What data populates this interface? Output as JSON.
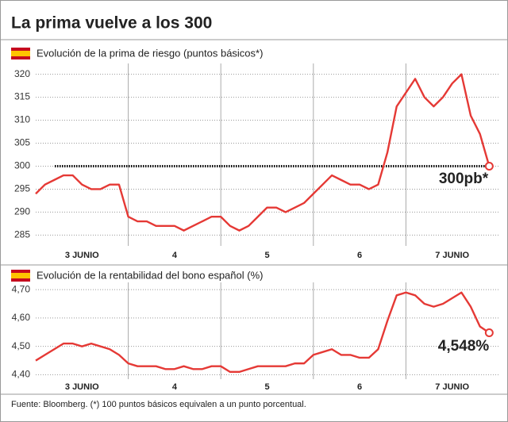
{
  "title": "La prima vuelve a los 300",
  "source": "Fuente: Bloomberg. (*) 100 puntos básicos equivalen a un punto porcentual.",
  "chart_data": [
    {
      "type": "line",
      "title": "Evolución de la prima de riesgo (puntos básicos*)",
      "x": [
        0,
        0.1,
        0.2,
        0.3,
        0.4,
        0.5,
        0.6,
        0.7,
        0.8,
        0.9,
        1,
        1.1,
        1.2,
        1.3,
        1.4,
        1.5,
        1.6,
        1.7,
        1.8,
        1.9,
        2,
        2.1,
        2.2,
        2.3,
        2.4,
        2.5,
        2.6,
        2.7,
        2.8,
        2.9,
        3,
        3.1,
        3.2,
        3.3,
        3.4,
        3.5,
        3.6,
        3.7,
        3.8,
        3.9,
        4,
        4.1,
        4.2,
        4.3,
        4.4,
        4.5,
        4.6,
        4.7,
        4.8,
        4.9
      ],
      "series": [
        {
          "name": "Prima de riesgo",
          "color": "#e53935",
          "values": [
            294,
            296,
            297,
            298,
            298,
            296,
            295,
            295,
            296,
            296,
            289,
            288,
            288,
            287,
            287,
            287,
            286,
            287,
            288,
            289,
            289,
            287,
            286,
            287,
            289,
            291,
            291,
            290,
            291,
            292,
            294,
            296,
            298,
            297,
            296,
            296,
            295,
            296,
            303,
            313,
            316,
            319,
            315,
            313,
            315,
            318,
            320,
            311,
            307,
            300
          ]
        }
      ],
      "xlim": [
        0,
        5
      ],
      "xticks": [
        {
          "value": 0.5,
          "label": "3 JUNIO"
        },
        {
          "value": 1.5,
          "label": "4"
        },
        {
          "value": 2.5,
          "label": "5"
        },
        {
          "value": 3.5,
          "label": "6"
        },
        {
          "value": 4.5,
          "label": "7 JUNIO"
        }
      ],
      "ylim": [
        283,
        322
      ],
      "yticks": [
        285,
        290,
        295,
        300,
        305,
        310,
        315,
        320
      ],
      "grid": true,
      "hline": 300,
      "annotation": "300pb*"
    },
    {
      "type": "line",
      "title": "Evolución de la rentabilidad del bono español (%)",
      "x": [
        0,
        0.1,
        0.2,
        0.3,
        0.4,
        0.5,
        0.6,
        0.7,
        0.8,
        0.9,
        1,
        1.1,
        1.2,
        1.3,
        1.4,
        1.5,
        1.6,
        1.7,
        1.8,
        1.9,
        2,
        2.1,
        2.2,
        2.3,
        2.4,
        2.5,
        2.6,
        2.7,
        2.8,
        2.9,
        3,
        3.1,
        3.2,
        3.3,
        3.4,
        3.5,
        3.6,
        3.7,
        3.8,
        3.9,
        4,
        4.1,
        4.2,
        4.3,
        4.4,
        4.5,
        4.6,
        4.7,
        4.8,
        4.9
      ],
      "series": [
        {
          "name": "Rentabilidad bono",
          "color": "#e53935",
          "values": [
            4.45,
            4.47,
            4.49,
            4.51,
            4.51,
            4.5,
            4.51,
            4.5,
            4.49,
            4.47,
            4.44,
            4.43,
            4.43,
            4.43,
            4.42,
            4.42,
            4.43,
            4.42,
            4.42,
            4.43,
            4.43,
            4.41,
            4.41,
            4.42,
            4.43,
            4.43,
            4.43,
            4.43,
            4.44,
            4.44,
            4.47,
            4.48,
            4.49,
            4.47,
            4.47,
            4.46,
            4.46,
            4.49,
            4.59,
            4.68,
            4.69,
            4.68,
            4.65,
            4.64,
            4.65,
            4.67,
            4.69,
            4.64,
            4.57,
            4.548
          ]
        }
      ],
      "xlim": [
        0,
        5
      ],
      "xticks": [
        {
          "value": 0.5,
          "label": "3 JUNIO"
        },
        {
          "value": 1.5,
          "label": "4"
        },
        {
          "value": 2.5,
          "label": "5"
        },
        {
          "value": 3.5,
          "label": "6"
        },
        {
          "value": 4.5,
          "label": "7 JUNIO"
        }
      ],
      "ylim": [
        4.39,
        4.72
      ],
      "yticks": [
        {
          "value": 4.4,
          "label": "4,40"
        },
        {
          "value": 4.5,
          "label": "4,50"
        },
        {
          "value": 4.6,
          "label": "4,60"
        },
        {
          "value": 4.7,
          "label": "4,70"
        }
      ],
      "grid": true,
      "annotation": "4,548%"
    }
  ]
}
